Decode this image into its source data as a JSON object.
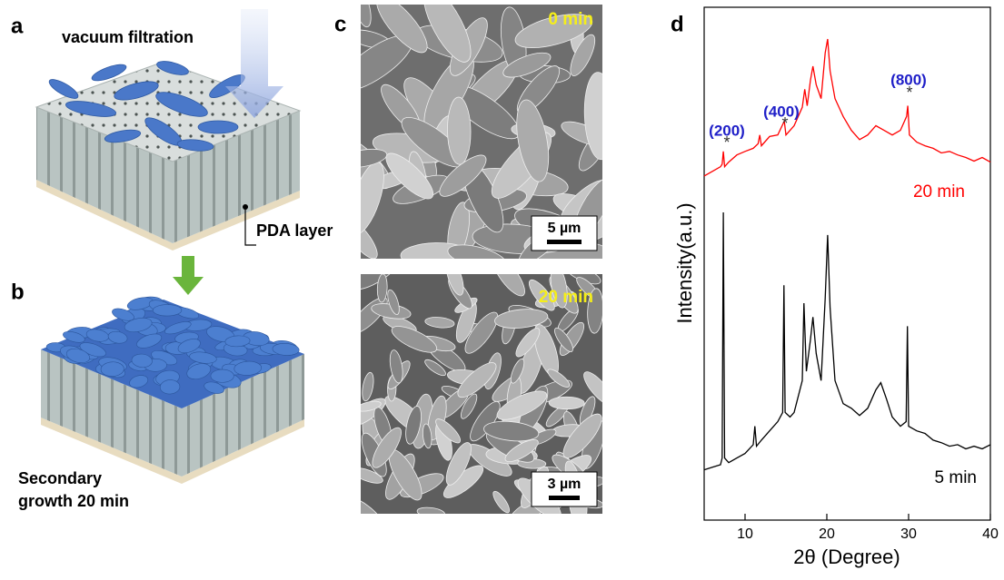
{
  "figure": {
    "panels": {
      "a": {
        "label": "a",
        "title": "vacuum filtration",
        "layer_label": "PDA layer"
      },
      "b": {
        "label": "b",
        "caption": [
          "Secondary",
          "growth 20 min"
        ]
      },
      "c": {
        "label": "c",
        "images": [
          {
            "time": "0 min",
            "scale_bar": "5 µm"
          },
          {
            "time": "20 min",
            "scale_bar": "3 µm"
          }
        ]
      }
    }
  },
  "chart_data": {
    "type": "line",
    "panel_label": "d",
    "x_label": "2θ (Degree)",
    "y_label": "Intensity(a.u.)",
    "xlim": [
      5,
      40
    ],
    "xticks": [
      10,
      20,
      30,
      40
    ],
    "ylim": [
      0,
      100
    ],
    "peak_labels": [
      "(200)",
      "(400)",
      "(800)"
    ],
    "peak_marker": "*",
    "peak_label_color": "#1f1fc8",
    "series": [
      {
        "name": "20 min",
        "color": "#ff0000",
        "x": [
          5,
          6,
          7,
          7.2,
          7.35,
          7.5,
          8,
          9,
          10,
          11,
          11.6,
          11.8,
          12,
          13,
          14,
          14.8,
          15,
          16,
          17,
          17.3,
          17.6,
          18,
          18.3,
          18.7,
          19.3,
          19.8,
          20.1,
          20.4,
          21,
          22,
          23,
          24,
          25,
          26,
          27,
          28,
          29,
          29.75,
          29.9,
          30.1,
          31,
          32,
          33,
          34,
          35,
          36,
          37,
          38,
          39,
          40
        ],
        "values": [
          67.1,
          68,
          68.9,
          69.4,
          71.9,
          68.9,
          69.8,
          71.2,
          71.9,
          72.5,
          73.4,
          75.1,
          73,
          74.8,
          75.1,
          77.8,
          75.1,
          76.9,
          80.5,
          84,
          80.8,
          85.8,
          88.5,
          84.9,
          82.2,
          91.1,
          93.8,
          87.6,
          82.2,
          78.7,
          76,
          74.2,
          75.1,
          76.9,
          76,
          75.1,
          76,
          78.7,
          80.8,
          75.1,
          73.7,
          73,
          72.5,
          71.6,
          71.9,
          71.2,
          70.7,
          70,
          70.7,
          69.8
        ]
      },
      {
        "name": "5 min",
        "color": "#000000",
        "x": [
          5,
          6,
          7,
          7.2,
          7.35,
          7.5,
          8,
          9,
          10,
          11,
          11.2,
          11.4,
          12,
          13,
          14,
          14.6,
          14.75,
          14.9,
          15.5,
          16,
          17,
          17.2,
          17.5,
          18,
          18.3,
          18.7,
          19.3,
          19.8,
          20.1,
          20.4,
          21,
          22,
          23,
          24,
          25,
          26,
          26.6,
          27.3,
          28,
          29,
          29.7,
          29.85,
          30,
          31,
          32,
          33,
          34,
          35,
          36,
          37,
          38,
          39,
          40
        ],
        "values": [
          9.8,
          10.3,
          10.8,
          12.1,
          60,
          12.1,
          11.2,
          12.1,
          13,
          14.7,
          18.3,
          14.4,
          15.6,
          17.4,
          19.2,
          21,
          45.8,
          21,
          20.1,
          21,
          27.2,
          42.3,
          29,
          35.2,
          39.6,
          32.5,
          27.2,
          43.2,
          55.6,
          41.4,
          27.2,
          22.7,
          21.8,
          20.4,
          21.8,
          25.4,
          26.8,
          23.6,
          20.1,
          18.3,
          19.2,
          37.8,
          18.3,
          17.4,
          16.9,
          15.6,
          15.1,
          14.4,
          14.7,
          13.9,
          14.4,
          13.9,
          14.7
        ]
      }
    ]
  }
}
